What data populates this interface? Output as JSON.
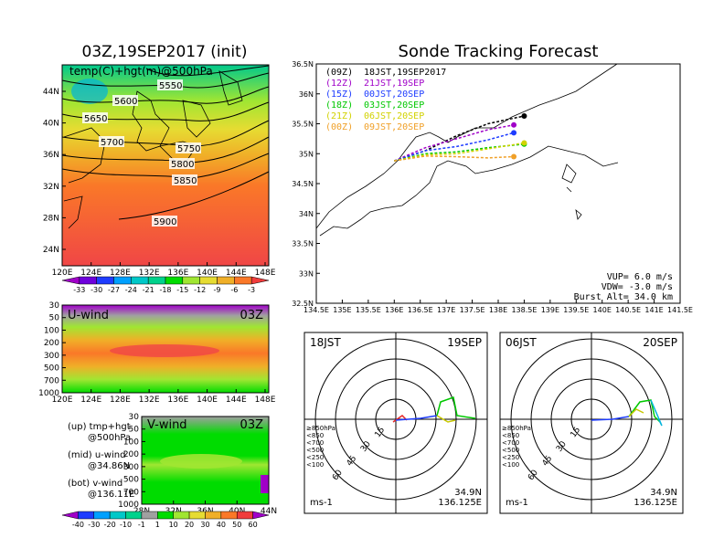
{
  "left_title": "03Z,19SEP2017 (init)",
  "right_title": "Sonde Tracking Forecast",
  "map500": {
    "label": "temp(C)+hgt(m)@500hPa",
    "ylabels": [
      "44N",
      "40N",
      "36N",
      "32N",
      "28N",
      "24N"
    ],
    "xlabels": [
      "120E",
      "124E",
      "128E",
      "132E",
      "136E",
      "140E",
      "144E",
      "148E"
    ],
    "contours": [
      "5550",
      "5600",
      "5650",
      "5700",
      "5750",
      "5800",
      "5850",
      "5900"
    ],
    "colorbar": [
      "-33",
      "-30",
      "-27",
      "-24",
      "-21",
      "-18",
      "-15",
      "-12",
      "-9",
      "-6",
      "-3"
    ],
    "colorbar_colors": [
      "#a000c8",
      "#6e00dc",
      "#1e3cff",
      "#00a0ff",
      "#00c8c8",
      "#00d28c",
      "#00dc00",
      "#a0e632",
      "#e6dc32",
      "#f0af28",
      "#fa7828",
      "#f03c3c"
    ]
  },
  "uwind": {
    "label": "U-wind",
    "time": "03Z",
    "ylabels": [
      "30",
      "50",
      "100",
      "200",
      "300",
      "500",
      "700",
      "1000"
    ],
    "xlabels": [
      "120E",
      "124E",
      "128E",
      "132E",
      "136E",
      "140E",
      "144E",
      "148E"
    ]
  },
  "vwind": {
    "label": "V-wind",
    "time": "03Z",
    "ylabels": [
      "30",
      "50",
      "100",
      "200",
      "300",
      "500",
      "700",
      "1000"
    ],
    "xlabels": [
      "28N",
      "32N",
      "36N",
      "40N",
      "44N"
    ]
  },
  "notes": [
    {
      "l1": "(up)  tmp+hgt",
      "l2": "@500hPa"
    },
    {
      "l1": "(mid)  u-wind",
      "l2": "@34.86N"
    },
    {
      "l1": "(bot)  v-wind",
      "l2": "@136.11E"
    }
  ],
  "wind_colorbar": [
    "-40",
    "-30",
    "-20",
    "-10",
    "-1",
    "1",
    "10",
    "20",
    "30",
    "40",
    "50",
    "60"
  ],
  "wind_colorbar_colors": [
    "#a000c8",
    "#1e3cff",
    "#00a0ff",
    "#00c8c8",
    "#00d28c",
    "#a0a0a0",
    "#00dc00",
    "#a0e632",
    "#e6dc32",
    "#f0af28",
    "#fa7828",
    "#f03c3c",
    "#a000c8"
  ],
  "tracking": {
    "legend": [
      {
        "code": "(09Z)",
        "label": "18JST,19SEP2017",
        "color": "#000000"
      },
      {
        "code": "(12Z)",
        "label": "21JST,19SEP",
        "color": "#a000c8"
      },
      {
        "code": "(15Z)",
        "label": "00JST,20SEP",
        "color": "#1e3cff"
      },
      {
        "code": "(18Z)",
        "label": "03JST,20SEP",
        "color": "#00c800"
      },
      {
        "code": "(21Z)",
        "label": "06JST,20SEP",
        "color": "#d2d200"
      },
      {
        "code": "(00Z)",
        "label": "09JST,20SEP",
        "color": "#f0a028"
      }
    ],
    "ylabels": [
      "36.5N",
      "36N",
      "35.5N",
      "35N",
      "34.5N",
      "34N",
      "33.5N",
      "33N",
      "32.5N"
    ],
    "xlabels": [
      "134.5E",
      "135E",
      "135.5E",
      "136E",
      "136.5E",
      "137E",
      "137.5E",
      "138E",
      "138.5E",
      "139E",
      "139.5E",
      "140E",
      "140.5E",
      "141E",
      "141.5E"
    ],
    "params": [
      "VUP=  6.0 m/s",
      "VDW= -3.0 m/s",
      "Burst Alt=  34.0 km"
    ]
  },
  "chart_data": [
    {
      "type": "line",
      "title": "Sonde Tracking Forecast",
      "x_range": [
        134.5,
        141.5
      ],
      "y_range": [
        32.5,
        36.5
      ],
      "series": [
        {
          "name": "(09Z) 18JST,19SEP2017",
          "x": [
            136.0,
            136.6,
            137.2,
            137.8,
            138.5
          ],
          "y": [
            34.88,
            35.05,
            35.3,
            35.5,
            35.63
          ]
        },
        {
          "name": "(12Z) 21JST,19SEP",
          "x": [
            136.0,
            136.6,
            137.2,
            137.8,
            138.3
          ],
          "y": [
            34.88,
            35.1,
            35.25,
            35.4,
            35.48
          ]
        },
        {
          "name": "(15Z) 00JST,20SEP",
          "x": [
            136.0,
            136.6,
            137.2,
            137.8,
            138.3
          ],
          "y": [
            34.88,
            35.05,
            35.12,
            35.23,
            35.35
          ]
        },
        {
          "name": "(18Z) 03JST,20SEP",
          "x": [
            136.0,
            136.6,
            137.2,
            137.8,
            138.5
          ],
          "y": [
            34.88,
            35.0,
            35.03,
            35.1,
            35.16
          ]
        },
        {
          "name": "(21Z) 06JST,20SEP",
          "x": [
            136.0,
            136.6,
            137.2,
            137.8,
            138.5
          ],
          "y": [
            34.88,
            34.98,
            35.0,
            35.08,
            35.18
          ]
        },
        {
          "name": "(00Z) 09JST,20SEP",
          "x": [
            136.0,
            136.6,
            137.2,
            137.8,
            138.3
          ],
          "y": [
            34.88,
            34.96,
            34.95,
            34.93,
            34.95
          ]
        }
      ]
    }
  ],
  "hodographs": [
    {
      "time": "18JST",
      "date": "19SEP",
      "lat": "34.9N",
      "lon": "136.125E",
      "unit": "ms-1",
      "rings": [
        "15",
        "30",
        "45",
        "60"
      ],
      "levels": [
        {
          "label": "≥850hPa",
          "color": "#e62828"
        },
        {
          "label": "<850",
          "color": "#f0a028"
        },
        {
          "label": "<700",
          "color": "#c8c800"
        },
        {
          "label": "<500",
          "color": "#00c800"
        },
        {
          "label": "<250",
          "color": "#00b4dc"
        },
        {
          "label": "<100",
          "color": "#1e3cff"
        }
      ]
    },
    {
      "time": "06JST",
      "date": "20SEP",
      "lat": "34.9N",
      "lon": "136.125E",
      "unit": "ms-1",
      "rings": [
        "15",
        "30",
        "45",
        "60"
      ],
      "levels": [
        {
          "label": "≥850hPa",
          "color": "#e62828"
        },
        {
          "label": "<850",
          "color": "#f0a028"
        },
        {
          "label": "<700",
          "color": "#c8c800"
        },
        {
          "label": "<500",
          "color": "#00c800"
        },
        {
          "label": "<250",
          "color": "#00b4dc"
        },
        {
          "label": "<100",
          "color": "#1e3cff"
        }
      ]
    }
  ]
}
